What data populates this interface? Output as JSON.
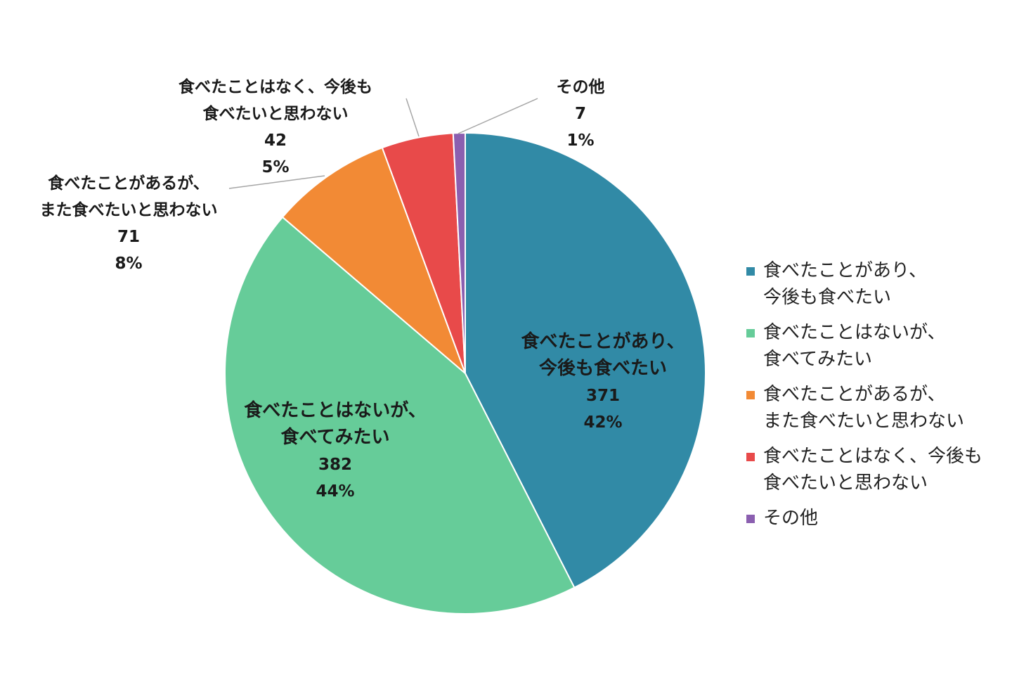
{
  "chart_data": {
    "type": "pie",
    "title": "",
    "categories": [
      "食べたことがあり、\n今後も食べたい",
      "食べたことはないが、\n食べてみたい",
      "食べたことがあるが、\nまた食べたいと思わない",
      "食べたことはなく、今後も\n食べたいと思わない",
      "その他"
    ],
    "values": [
      371,
      382,
      71,
      42,
      7
    ],
    "percent_labels": [
      "42%",
      "44%",
      "8%",
      "5%",
      "1%"
    ],
    "slice_label_text": [
      "食べたことがあり、\n今後も食べたい",
      "食べたことはないが、\n食べてみたい",
      "食べたことがあるが、\nまた食べたいと思わない",
      "食べたことはなく、今後も\n食べたいと思わない",
      "その他"
    ],
    "colors": [
      "#318aa6",
      "#66cc99",
      "#f28a35",
      "#e84a4a",
      "#8b5fb0"
    ],
    "start_angle": "12 o'clock",
    "direction": "clockwise",
    "legend_position": "right"
  }
}
